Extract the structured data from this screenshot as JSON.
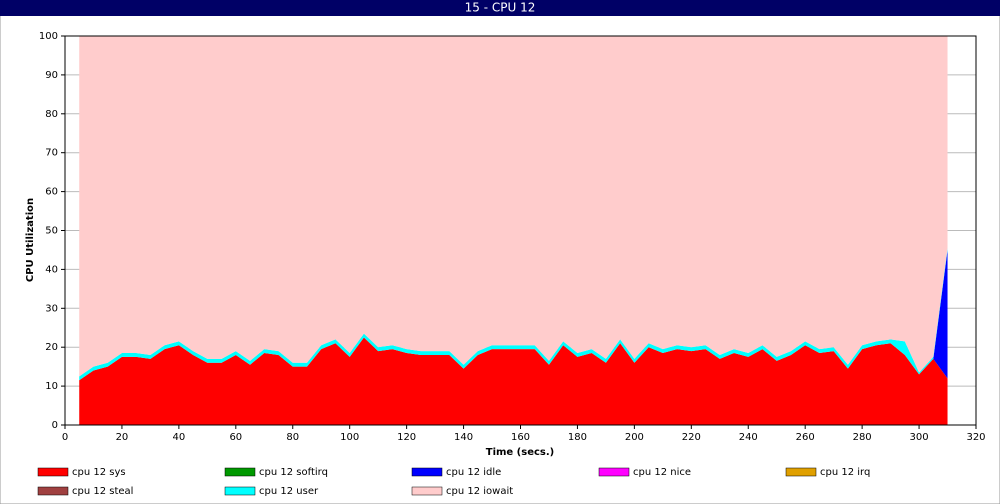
{
  "chart_data": {
    "type": "stacked_area",
    "title": "15 - CPU 12",
    "xlabel": "Time (secs.)",
    "ylabel": "CPU Utilization",
    "xlim": [
      0,
      320
    ],
    "xticks": [
      0,
      20,
      40,
      60,
      80,
      100,
      120,
      140,
      160,
      180,
      200,
      220,
      240,
      260,
      280,
      300,
      320
    ],
    "ylim": [
      0,
      100
    ],
    "yticks": [
      0,
      10,
      20,
      30,
      40,
      50,
      60,
      70,
      80,
      90,
      100
    ],
    "grid": true,
    "x": [
      5,
      10,
      15,
      20,
      25,
      30,
      35,
      40,
      45,
      50,
      55,
      60,
      65,
      70,
      75,
      80,
      85,
      90,
      95,
      100,
      105,
      110,
      115,
      120,
      125,
      130,
      135,
      140,
      145,
      150,
      155,
      160,
      165,
      170,
      175,
      180,
      185,
      190,
      195,
      200,
      205,
      210,
      215,
      220,
      225,
      230,
      235,
      240,
      245,
      250,
      255,
      260,
      265,
      270,
      275,
      280,
      285,
      290,
      295,
      300,
      305,
      310
    ],
    "series": [
      {
        "name": "cpu 12 sys",
        "color": "#ff0000",
        "values": [
          11.5,
          14,
          15,
          17.5,
          17.5,
          17,
          19.5,
          20.5,
          18,
          16,
          16,
          18,
          15.5,
          18.5,
          18,
          15,
          15,
          19.5,
          21,
          17.5,
          22.5,
          19,
          19.5,
          18.5,
          18,
          18,
          18,
          14.5,
          18,
          19.5,
          19.5,
          19.5,
          19.5,
          15.5,
          20.5,
          17.5,
          18.5,
          16,
          21,
          16,
          20,
          18.5,
          19.5,
          19,
          19.5,
          17,
          18.5,
          17.5,
          19.5,
          16.5,
          18,
          20.5,
          18.5,
          19,
          14.5,
          19.5,
          20.5,
          21,
          18,
          13,
          17,
          12
        ]
      },
      {
        "name": "cpu 12 softirq",
        "color": "#009900",
        "values": [
          0,
          0,
          0,
          0,
          0,
          0,
          0,
          0,
          0,
          0,
          0,
          0,
          0,
          0,
          0,
          0,
          0,
          0,
          0,
          0,
          0,
          0,
          0,
          0,
          0,
          0,
          0,
          0,
          0,
          0,
          0,
          0,
          0,
          0,
          0,
          0,
          0,
          0,
          0,
          0,
          0,
          0,
          0,
          0,
          0,
          0,
          0,
          0,
          0,
          0,
          0,
          0,
          0,
          0,
          0,
          0,
          0,
          0,
          0,
          0,
          0,
          0
        ]
      },
      {
        "name": "cpu 12 idle",
        "color": "#0000ff",
        "values": [
          0,
          0,
          0,
          0,
          0,
          0,
          0,
          0,
          0,
          0,
          0,
          0,
          0,
          0,
          0,
          0,
          0,
          0,
          0,
          0,
          0,
          0,
          0,
          0,
          0,
          0,
          0,
          0,
          0,
          0,
          0,
          0,
          0,
          0,
          0,
          0,
          0,
          0,
          0,
          0,
          0,
          0,
          0,
          0,
          0,
          0,
          0,
          0,
          0,
          0,
          0,
          0,
          0,
          0,
          0,
          0,
          0,
          0,
          0,
          0,
          0,
          33
        ]
      },
      {
        "name": "cpu 12 nice",
        "color": "#ff00ff",
        "values": [
          0,
          0,
          0,
          0,
          0,
          0,
          0,
          0,
          0,
          0,
          0,
          0,
          0,
          0,
          0,
          0,
          0,
          0,
          0,
          0,
          0,
          0,
          0,
          0,
          0,
          0,
          0,
          0,
          0,
          0,
          0,
          0,
          0,
          0,
          0,
          0,
          0,
          0,
          0,
          0,
          0,
          0,
          0,
          0,
          0,
          0,
          0,
          0,
          0,
          0,
          0,
          0,
          0,
          0,
          0,
          0,
          0,
          0,
          0,
          0,
          0,
          0
        ]
      },
      {
        "name": "cpu 12 irq",
        "color": "#e0a000",
        "values": [
          0,
          0,
          0,
          0,
          0,
          0,
          0,
          0,
          0,
          0,
          0,
          0,
          0,
          0,
          0,
          0,
          0,
          0,
          0,
          0,
          0,
          0,
          0,
          0,
          0,
          0,
          0,
          0,
          0,
          0,
          0,
          0,
          0,
          0,
          0,
          0,
          0,
          0,
          0,
          0,
          0,
          0,
          0,
          0,
          0,
          0,
          0,
          0,
          0,
          0,
          0,
          0,
          0,
          0,
          0,
          0,
          0,
          0,
          0,
          0,
          0,
          0
        ]
      },
      {
        "name": "cpu 12 steal",
        "color": "#a04040",
        "values": [
          0,
          0,
          0,
          0,
          0,
          0,
          0,
          0,
          0,
          0,
          0,
          0,
          0,
          0,
          0,
          0,
          0,
          0,
          0,
          0,
          0,
          0,
          0,
          0,
          0,
          0,
          0,
          0,
          0,
          0,
          0,
          0,
          0,
          0,
          0,
          0,
          0,
          0,
          0,
          0,
          0,
          0,
          0,
          0,
          0,
          0,
          0,
          0,
          0,
          0,
          0,
          0,
          0,
          0,
          0,
          0,
          0,
          0,
          0,
          0,
          0,
          0
        ]
      },
      {
        "name": "cpu 12 user",
        "color": "#00ffff",
        "values": [
          1,
          1,
          1,
          1,
          1,
          1,
          1,
          1,
          1,
          1,
          1,
          1,
          1,
          1,
          1,
          1,
          1,
          1,
          1,
          1,
          1,
          1,
          1,
          1,
          1,
          1,
          1,
          1,
          1,
          1,
          1,
          1,
          1,
          1,
          1,
          1,
          1,
          1,
          1,
          1,
          1,
          1,
          1,
          1,
          1,
          1,
          1,
          1,
          1,
          1,
          1,
          1,
          1,
          1,
          1,
          1,
          1,
          1,
          3.5,
          0.5,
          0.5,
          0.5
        ]
      },
      {
        "name": "cpu 12 iowait",
        "color": "#ffcccc",
        "values": [
          87.5,
          85,
          84,
          81.5,
          81.5,
          82,
          79.5,
          78.5,
          81,
          83,
          83,
          81,
          83.5,
          80.5,
          81,
          84,
          84,
          79.5,
          78,
          81.5,
          76.5,
          80,
          79.5,
          80.5,
          81,
          81,
          81,
          84.5,
          81,
          79.5,
          79.5,
          79.5,
          79.5,
          83.5,
          78.5,
          81.5,
          80.5,
          83,
          78,
          83,
          79,
          80.5,
          79.5,
          80,
          79.5,
          82,
          80.5,
          81.5,
          79.5,
          82.5,
          81,
          78.5,
          80.5,
          80,
          84.5,
          79.5,
          78.5,
          78,
          78.5,
          86.5,
          82.5,
          54.5
        ]
      }
    ]
  }
}
